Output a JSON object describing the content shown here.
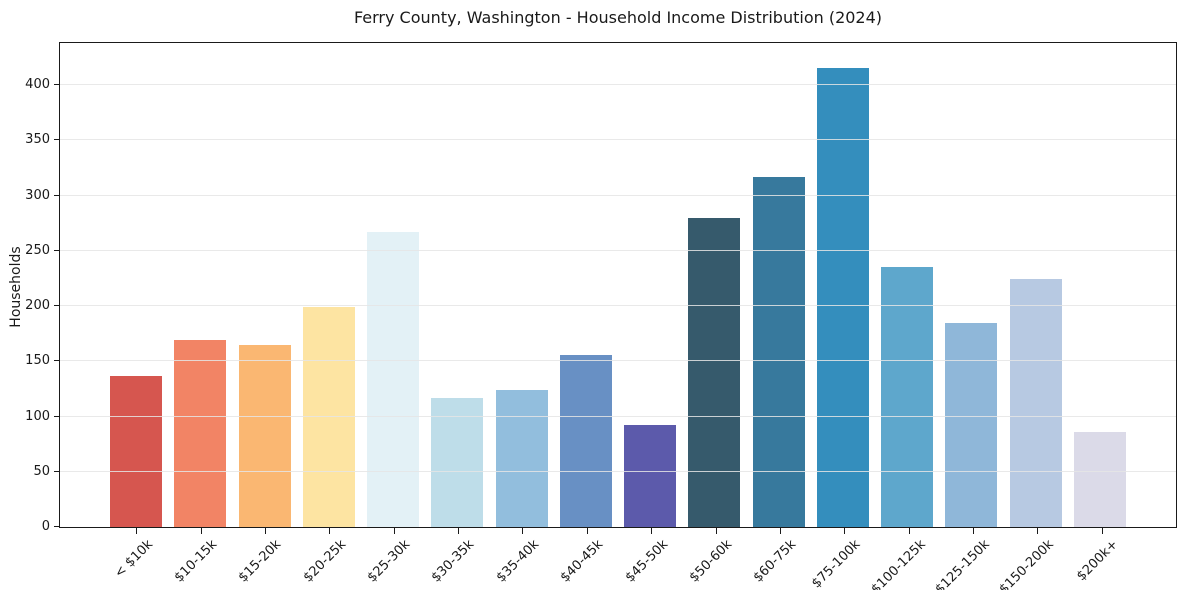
{
  "title": "Ferry County, Washington - Household Income Distribution (2024)",
  "chart_data": {
    "type": "bar",
    "title": "Ferry County, Washington - Household Income Distribution (2024)",
    "xlabel": "",
    "ylabel": "Households",
    "categories": [
      "< $10k",
      "$10-15k",
      "$15-20k",
      "$20-25k",
      "$25-30k",
      "$30-35k",
      "$35-40k",
      "$40-45k",
      "$45-50k",
      "$50-60k",
      "$60-75k",
      "$75-100k",
      "$100-125k",
      "$125-150k",
      "$150-200k",
      "$200k+"
    ],
    "values": [
      137,
      169,
      165,
      199,
      267,
      117,
      124,
      156,
      92,
      280,
      317,
      415,
      235,
      185,
      224,
      86
    ],
    "bar_colors": [
      "#d6564f",
      "#f28465",
      "#fab772",
      "#fde4a2",
      "#e3f1f6",
      "#bedde9",
      "#92bedd",
      "#6890c4",
      "#5c5aab",
      "#365a6c",
      "#37799d",
      "#348ebd",
      "#5ea7cc",
      "#8fb7d9",
      "#b7c9e2",
      "#dbdae8"
    ],
    "yticks": [
      0,
      50,
      100,
      150,
      200,
      250,
      300,
      350,
      400
    ],
    "ylim": [
      0,
      438
    ],
    "grid": "horizontal",
    "legend": "none",
    "background": "#ffffff"
  },
  "colors": {
    "spine": "#1a1a1a",
    "grid": "#e5e5e5",
    "text": "#1a1a1a",
    "background": "#ffffff"
  }
}
